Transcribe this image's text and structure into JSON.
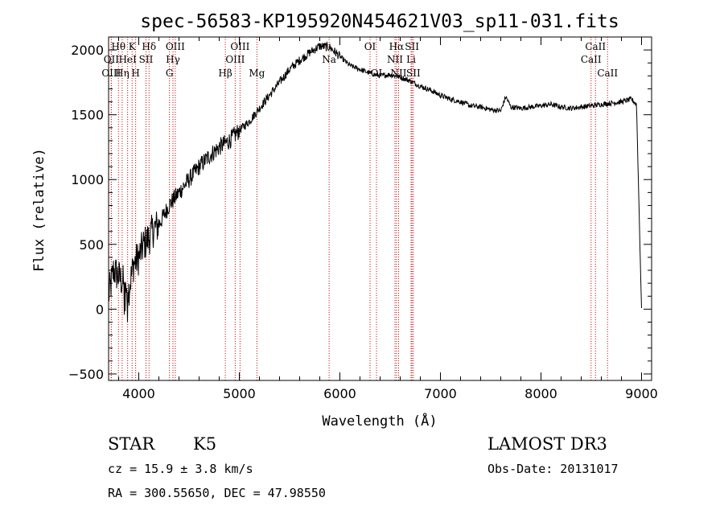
{
  "chart_data": {
    "type": "line",
    "title": "spec-56583-KP195920N454621V03_sp11-031.fits",
    "xlabel": "Wavelength (Å)",
    "ylabel": "Flux (relative)",
    "xlim": [
      3700,
      9100
    ],
    "ylim": [
      -550,
      2100
    ],
    "x_ticks": [
      4000,
      5000,
      6000,
      7000,
      8000,
      9000
    ],
    "y_ticks": [
      -500,
      0,
      500,
      1000,
      1500,
      2000
    ],
    "series": [
      {
        "name": "flux",
        "color": "#000000",
        "x": [
          3700,
          3750,
          3800,
          3850,
          3900,
          3950,
          4000,
          4050,
          4100,
          4150,
          4200,
          4300,
          4400,
          4500,
          4600,
          4700,
          4800,
          4900,
          5000,
          5100,
          5200,
          5300,
          5400,
          5500,
          5600,
          5700,
          5800,
          5900,
          6000,
          6100,
          6200,
          6300,
          6400,
          6500,
          6600,
          6700,
          6800,
          6900,
          7000,
          7100,
          7200,
          7300,
          7400,
          7500,
          7600,
          7650,
          7700,
          7800,
          7900,
          8000,
          8100,
          8200,
          8300,
          8400,
          8500,
          8600,
          8700,
          8800,
          8900,
          8950,
          9000
        ],
        "y": [
          100,
          300,
          250,
          200,
          150,
          350,
          400,
          500,
          550,
          620,
          650,
          800,
          900,
          1000,
          1100,
          1180,
          1250,
          1300,
          1380,
          1450,
          1550,
          1650,
          1750,
          1850,
          1920,
          1980,
          2030,
          2020,
          1950,
          1880,
          1850,
          1820,
          1800,
          1810,
          1790,
          1760,
          1720,
          1690,
          1650,
          1620,
          1600,
          1570,
          1560,
          1540,
          1530,
          1640,
          1560,
          1550,
          1560,
          1570,
          1580,
          1560,
          1550,
          1560,
          1570,
          1580,
          1590,
          1600,
          1620,
          1580,
          -10
        ]
      }
    ],
    "spectral_lines": [
      {
        "label": "Hθ",
        "x": 3798,
        "row": 1
      },
      {
        "label": "OII",
        "x": 3727,
        "row": 2
      },
      {
        "label": "OIII",
        "x": 3727,
        "row": 3
      },
      {
        "label": "K",
        "x": 3934,
        "row": 1
      },
      {
        "label": "HeI",
        "x": 3889,
        "row": 2
      },
      {
        "label": "Hη",
        "x": 3835,
        "row": 3
      },
      {
        "label": "Hδ",
        "x": 4102,
        "row": 1
      },
      {
        "label": "SII",
        "x": 4072,
        "row": 2
      },
      {
        "label": "H",
        "x": 3969,
        "row": 3
      },
      {
        "label": "OIII",
        "x": 4363,
        "row": 1
      },
      {
        "label": "Hγ",
        "x": 4340,
        "row": 2
      },
      {
        "label": "G",
        "x": 4305,
        "row": 3
      },
      {
        "label": "OIII",
        "x": 5007,
        "row": 1
      },
      {
        "label": "OIII",
        "x": 4959,
        "row": 2
      },
      {
        "label": "Hβ",
        "x": 4861,
        "row": 3
      },
      {
        "label": "Mg",
        "x": 5175,
        "row": 3
      },
      {
        "label": "Na",
        "x": 5893,
        "row": 2
      },
      {
        "label": "OI",
        "x": 6300,
        "row": 1
      },
      {
        "label": "OI",
        "x": 6364,
        "row": 3
      },
      {
        "label": "Hα",
        "x": 6563,
        "row": 1
      },
      {
        "label": "SII",
        "x": 6717,
        "row": 1
      },
      {
        "label": "NII",
        "x": 6548,
        "row": 2
      },
      {
        "label": "Li",
        "x": 6708,
        "row": 2
      },
      {
        "label": "NII",
        "x": 6584,
        "row": 3
      },
      {
        "label": "SII",
        "x": 6731,
        "row": 3
      },
      {
        "label": "CaII",
        "x": 8542,
        "row": 1
      },
      {
        "label": "CaII",
        "x": 8498,
        "row": 2
      },
      {
        "label": "CaII",
        "x": 8662,
        "row": 3
      }
    ]
  },
  "info": {
    "class": "STAR",
    "subclass": "K5",
    "survey": "LAMOST DR3",
    "cz": "cz = 15.9 ± 3.8 km/s",
    "obs_date": "Obs-Date: 20131017",
    "radec": "RA = 300.55650, DEC =  47.98550"
  }
}
